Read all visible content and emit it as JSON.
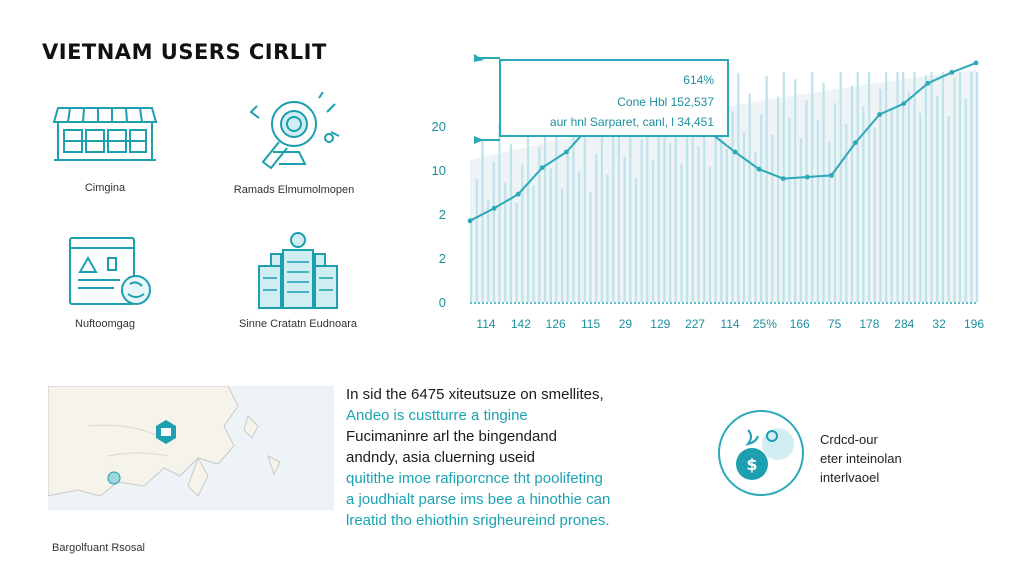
{
  "page": {
    "title": "VIETNAM USERS CIRLIT"
  },
  "icons": [
    {
      "label": "Cimgina",
      "icon": "storefront-icon"
    },
    {
      "label": "Ramads Elmumolmopen",
      "icon": "gear-search-icon"
    },
    {
      "label": "Nuftoomgag",
      "icon": "browser-warning-icon"
    },
    {
      "label": "Sinne Cratatn Eudnoara",
      "icon": "city-buildings-icon"
    }
  ],
  "chart_data": {
    "type": "line",
    "ytick_labels": [
      "0",
      "2",
      "2",
      "10",
      "20"
    ],
    "xtick_labels": [
      "114",
      "142",
      "126",
      "115",
      "29",
      "129",
      "227",
      "114",
      "25%",
      "166",
      "75",
      "178",
      "284",
      "32",
      "196"
    ],
    "series": [
      {
        "values": [
          5.2,
          6.0,
          6.9,
          8.6,
          9.6,
          11.3,
          12.0,
          13.2,
          12.4,
          12.0,
          10.8,
          9.6,
          8.5,
          7.9,
          8.0,
          8.1,
          10.2,
          12.0,
          12.7,
          14.0,
          14.7,
          15.3
        ]
      }
    ],
    "tooltip": {
      "line1": "614%",
      "line2": "Cone Hbl 152,537",
      "line3": "aur hnl Sarparet, canl, l 34,451"
    },
    "colors": {
      "line": "#2ba9b9",
      "bars": "#bfe3ea",
      "area": "#e6eef2",
      "axis_text": "#1c8fa0"
    }
  },
  "map": {
    "caption": "Bargolfuant Rsosal",
    "marker_icon": "location-hexagon-icon"
  },
  "text_block": {
    "dark1": "In sid the 6475 xiteutsuze on smellites,",
    "teal1": "Andeo is custturre a tingine",
    "dark2": "Fucimaninre arl the bingendand",
    "dark3": "andndy, asia cluerning useid",
    "teal2": "quitithe imoe rafiporcnce tht poolifeting",
    "teal3": "a joudhialt parse ims bee a hinothie can",
    "teal4": "lreatid tho ehiothin srigheureind prones."
  },
  "badge": {
    "icon": "money-bag-icon",
    "line1": "Crdcd-our",
    "line2": "eter inteinolan",
    "line3": "interlvaoel"
  }
}
